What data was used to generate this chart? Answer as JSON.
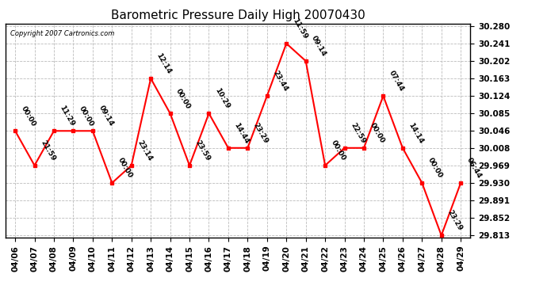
{
  "title": "Barometric Pressure Daily High 20070430",
  "copyright": "Copyright 2007 Cartronics.com",
  "dates": [
    "04/06",
    "04/07",
    "04/08",
    "04/09",
    "04/10",
    "04/11",
    "04/12",
    "04/13",
    "04/14",
    "04/15",
    "04/16",
    "04/17",
    "04/18",
    "04/19",
    "04/20",
    "04/21",
    "04/22",
    "04/23",
    "04/24",
    "04/25",
    "04/26",
    "04/27",
    "04/28",
    "04/29"
  ],
  "values": [
    30.046,
    29.969,
    30.046,
    30.046,
    30.046,
    29.93,
    29.969,
    30.163,
    30.085,
    29.969,
    30.085,
    30.008,
    30.008,
    30.124,
    30.241,
    30.202,
    29.969,
    30.008,
    30.008,
    30.124,
    30.008,
    29.93,
    29.813,
    29.93
  ],
  "annotations": [
    "00:00",
    "21:59",
    "11:29",
    "00:00",
    "09:14",
    "00:00",
    "23:14",
    "12:14",
    "00:00",
    "23:59",
    "10:29",
    "14:44",
    "23:29",
    "23:44",
    "11:59",
    "09:14",
    "00:00",
    "22:59",
    "00:00",
    "07:44",
    "14:14",
    "00:00",
    "23:29",
    "06:44"
  ],
  "ylim_min": 29.813,
  "ylim_max": 30.28,
  "yticks": [
    29.813,
    29.852,
    29.891,
    29.93,
    29.969,
    30.008,
    30.046,
    30.085,
    30.124,
    30.163,
    30.202,
    30.241,
    30.28
  ],
  "line_color": "red",
  "marker_color": "red",
  "bg_color": "white",
  "grid_color": "#bbbbbb",
  "title_fontsize": 11,
  "annotation_fontsize": 6.5,
  "tick_fontsize": 7.5
}
